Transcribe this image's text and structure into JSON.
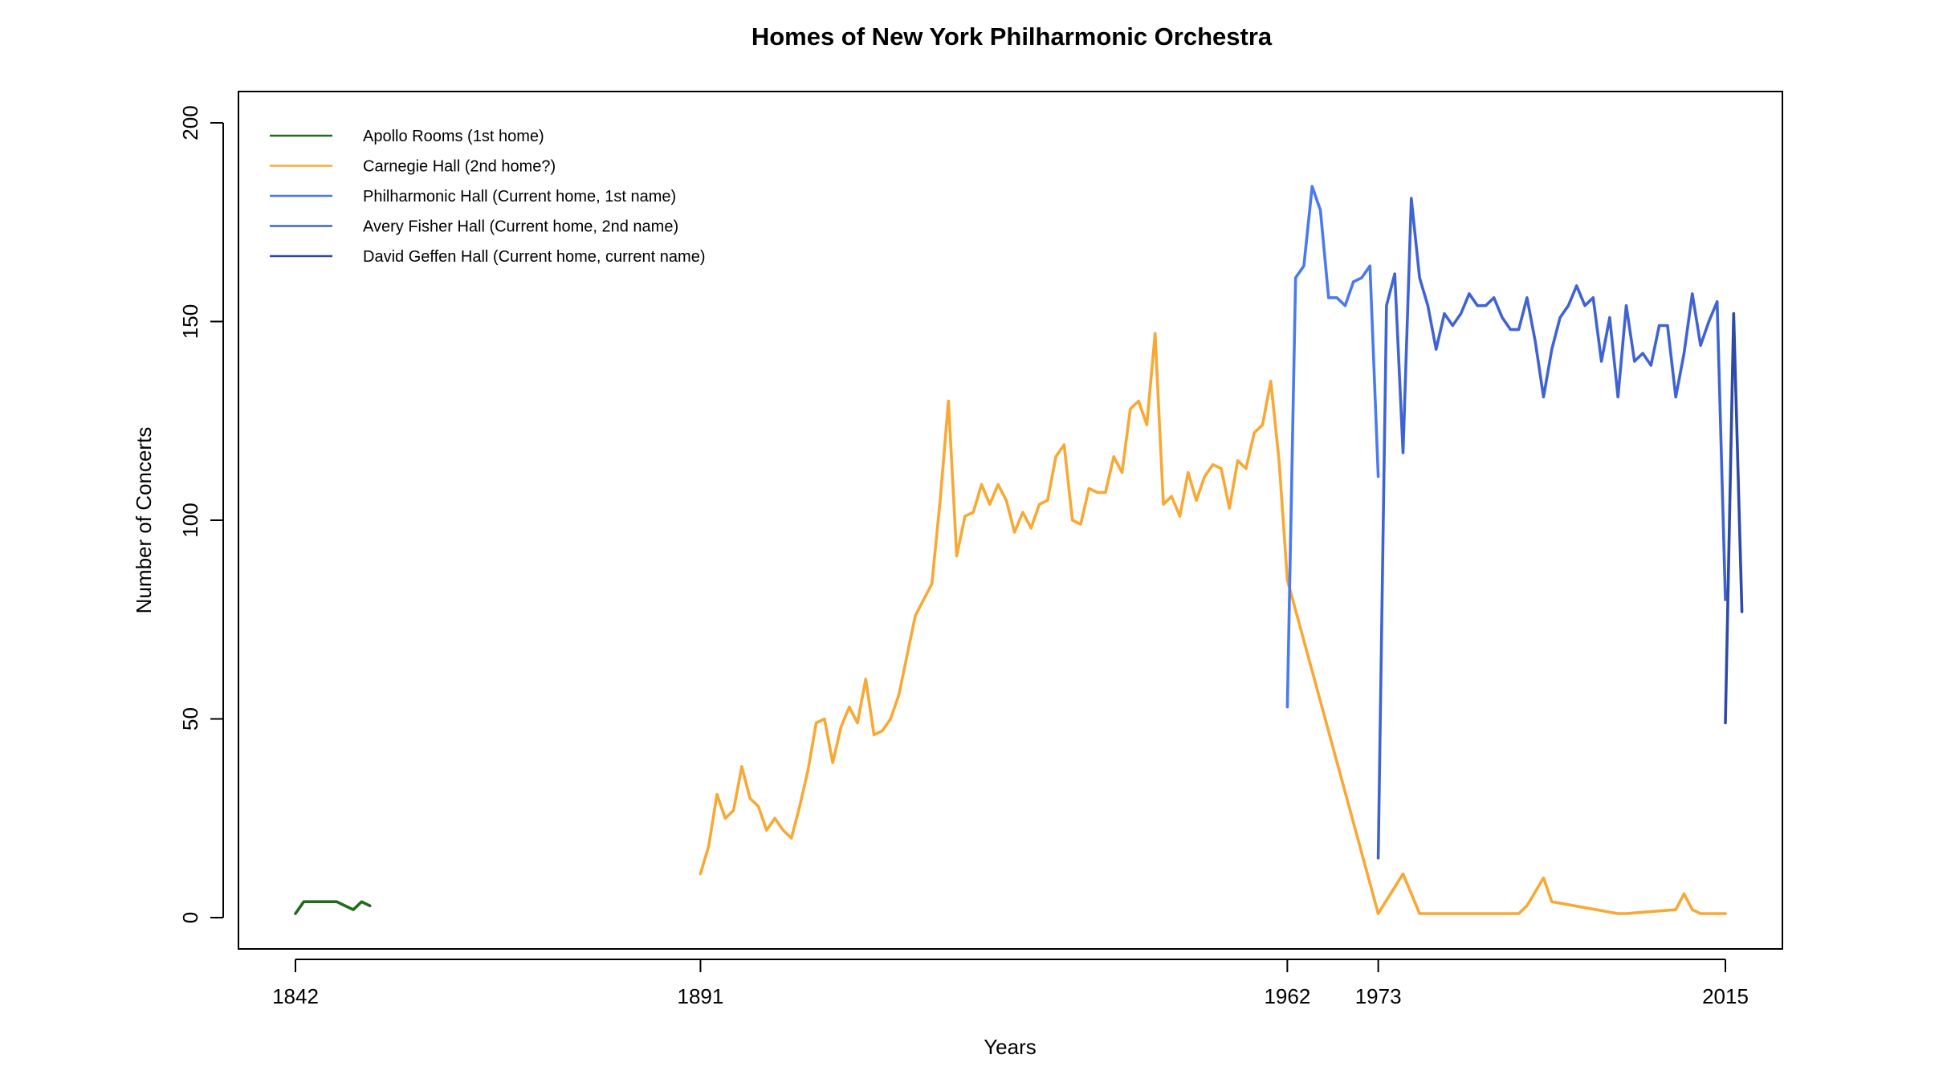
{
  "chart_data": {
    "type": "line",
    "title": "Homes of New York Philharmonic Orchestra",
    "xlabel": "Years",
    "ylabel": "Number of Concerts",
    "xlim": [
      1842,
      2016
    ],
    "ylim": [
      0,
      200
    ],
    "x_ticks": [
      1842,
      1891,
      1962,
      1973,
      2015
    ],
    "y_ticks": [
      0,
      50,
      100,
      150,
      200
    ],
    "grid": false,
    "legend_position": "top-left",
    "series": [
      {
        "name": "Apollo Rooms (1st home)",
        "color": "#226b1c",
        "x": [
          1842,
          1843,
          1844,
          1845,
          1846,
          1847,
          1848,
          1849,
          1850,
          1851
        ],
        "y": [
          1,
          4,
          4,
          4,
          4,
          4,
          3,
          2,
          4,
          3
        ]
      },
      {
        "name": "Carnegie Hall (2nd home?)",
        "color": "#f8a833",
        "x": [
          1891,
          1892,
          1893,
          1894,
          1895,
          1896,
          1897,
          1898,
          1899,
          1900,
          1901,
          1902,
          1903,
          1904,
          1905,
          1906,
          1907,
          1908,
          1909,
          1910,
          1911,
          1912,
          1913,
          1914,
          1915,
          1916,
          1917,
          1918,
          1919,
          1920,
          1921,
          1922,
          1923,
          1924,
          1925,
          1926,
          1927,
          1928,
          1929,
          1930,
          1931,
          1932,
          1933,
          1934,
          1935,
          1936,
          1937,
          1938,
          1939,
          1940,
          1941,
          1942,
          1943,
          1944,
          1945,
          1946,
          1947,
          1948,
          1949,
          1950,
          1951,
          1952,
          1953,
          1954,
          1955,
          1956,
          1957,
          1958,
          1959,
          1960,
          1961,
          1962,
          1973,
          1976,
          1978,
          1983,
          1990,
          1991,
          1993,
          1994,
          2002,
          2003,
          2009,
          2010,
          2011,
          2012,
          2015
        ],
        "y": [
          11,
          18,
          31,
          25,
          27,
          38,
          30,
          28,
          22,
          25,
          22,
          20,
          28,
          37,
          49,
          50,
          39,
          48,
          53,
          49,
          60,
          46,
          47,
          50,
          56,
          66,
          76,
          80,
          84,
          105,
          130,
          91,
          101,
          102,
          109,
          104,
          109,
          105,
          97,
          102,
          98,
          104,
          105,
          116,
          119,
          100,
          99,
          108,
          107,
          107,
          116,
          112,
          128,
          130,
          124,
          147,
          104,
          106,
          101,
          112,
          105,
          111,
          114,
          113,
          103,
          115,
          113,
          122,
          124,
          135,
          115,
          85,
          1,
          11,
          1,
          1,
          1,
          3,
          10,
          4,
          1,
          1,
          2,
          6,
          2,
          1,
          1
        ]
      },
      {
        "name": "Philharmonic Hall (Current home, 1st name)",
        "color": "#4a79f0",
        "x": [
          1962,
          1963,
          1964,
          1965,
          1966,
          1967,
          1968,
          1969,
          1970,
          1971,
          1972,
          1973
        ],
        "y": [
          53,
          161,
          164,
          184,
          178,
          156,
          156,
          154,
          160,
          161,
          164,
          111
        ]
      },
      {
        "name": "Avery Fisher Hall (Current home, 2nd name)",
        "color": "#3f63d4",
        "x": [
          1973,
          1974,
          1975,
          1976,
          1977,
          1978,
          1979,
          1980,
          1981,
          1982,
          1983,
          1984,
          1985,
          1986,
          1987,
          1988,
          1989,
          1990,
          1991,
          1992,
          1993,
          1994,
          1995,
          1996,
          1997,
          1998,
          1999,
          2000,
          2001,
          2002,
          2003,
          2004,
          2005,
          2006,
          2007,
          2008,
          2009,
          2010,
          2011,
          2012,
          2013,
          2014,
          2015
        ],
        "y": [
          15,
          154,
          162,
          117,
          181,
          161,
          154,
          143,
          152,
          149,
          152,
          157,
          154,
          154,
          156,
          151,
          148,
          148,
          156,
          145,
          131,
          143,
          151,
          154,
          159,
          154,
          156,
          140,
          151,
          131,
          154,
          140,
          142,
          139,
          149,
          149,
          131,
          142,
          157,
          144,
          150,
          155,
          80
        ]
      },
      {
        "name": "David Geffen Hall (Current home, current name)",
        "color": "#2d4aa6",
        "x": [
          2015,
          2016,
          2017
        ],
        "y": [
          49,
          152,
          77
        ]
      }
    ]
  }
}
